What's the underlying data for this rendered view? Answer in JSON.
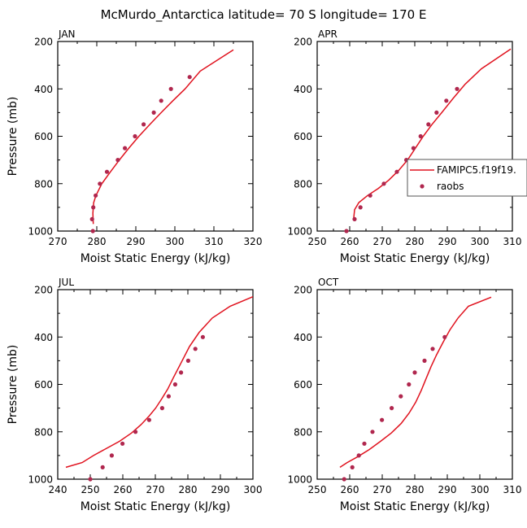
{
  "figure_title": "McMurdo_Antarctica  latitude= 70 S longitude= 170 E",
  "colors": {
    "model": "#e0121e",
    "obs": "#b0274e"
  },
  "legend": {
    "entries": [
      "FAMIPC5.f19f19.",
      "raobs"
    ],
    "panel": 1,
    "placement": "right-middle"
  },
  "chart_data": [
    {
      "type": "line",
      "panel_label": "JAN",
      "xlabel": "Moist Static Energy (kJ/kg)",
      "ylabel": "Pressure (mb)",
      "xlim": [
        270,
        320
      ],
      "ylim": [
        1000,
        200
      ],
      "y_inverted": true,
      "xticks": [
        270,
        280,
        290,
        300,
        310,
        320
      ],
      "yticks": [
        200,
        400,
        600,
        800,
        1000
      ],
      "series": [
        {
          "name": "FAMIPC5.f19f19.",
          "style": "line",
          "x": [
            279.1,
            279.0,
            279.2,
            279.8,
            281.3,
            283.5,
            285.8,
            288.2,
            290.8,
            293.6,
            296.5,
            299.5,
            302.6,
            306.5,
            315.0
          ],
          "y": [
            970,
            925,
            880,
            850,
            800,
            750,
            700,
            650,
            600,
            550,
            500,
            450,
            400,
            325,
            235
          ]
        },
        {
          "name": "raobs",
          "style": "markers",
          "x": [
            279.0,
            278.8,
            279.1,
            279.7,
            280.8,
            282.6,
            285.4,
            287.2,
            289.8,
            292.0,
            294.6,
            296.5,
            299.0,
            303.8
          ],
          "y": [
            1000,
            950,
            900,
            850,
            800,
            750,
            700,
            650,
            600,
            550,
            500,
            450,
            400,
            350
          ]
        }
      ]
    },
    {
      "type": "line",
      "panel_label": "APR",
      "xlabel": "Moist Static Energy (kJ/kg)",
      "ylabel": "",
      "xlim": [
        250,
        310
      ],
      "ylim": [
        1000,
        200
      ],
      "y_inverted": true,
      "xticks": [
        250,
        260,
        270,
        280,
        290,
        300,
        310
      ],
      "yticks": [
        200,
        400,
        600,
        800,
        1000
      ],
      "series": [
        {
          "name": "FAMIPC5.f19f19.",
          "style": "line",
          "x": [
            261.2,
            261.5,
            262.8,
            265.5,
            268.8,
            272.0,
            275.0,
            277.8,
            280.2,
            282.6,
            285.3,
            288.3,
            291.8,
            295.5,
            300.5,
            309.5
          ],
          "y": [
            950,
            910,
            880,
            850,
            820,
            785,
            745,
            700,
            650,
            600,
            550,
            500,
            440,
            380,
            315,
            232
          ]
        },
        {
          "name": "raobs",
          "style": "markers",
          "x": [
            259.0,
            261.5,
            263.3,
            266.3,
            270.5,
            274.5,
            277.4,
            279.6,
            281.8,
            284.2,
            286.7,
            289.7,
            293.0
          ],
          "y": [
            1000,
            950,
            900,
            850,
            800,
            750,
            700,
            650,
            600,
            550,
            500,
            450,
            400
          ]
        }
      ]
    },
    {
      "type": "line",
      "panel_label": "JUL",
      "xlabel": "Moist Static Energy (kJ/kg)",
      "ylabel": "Pressure (mb)",
      "xlim": [
        240,
        300
      ],
      "ylim": [
        1000,
        200
      ],
      "y_inverted": true,
      "xticks": [
        240,
        250,
        260,
        270,
        280,
        290,
        300
      ],
      "yticks": [
        200,
        400,
        600,
        800,
        1000
      ],
      "series": [
        {
          "name": "FAMIPC5.f19f19.",
          "style": "line",
          "x": [
            242.5,
            247.5,
            251.0,
            255.0,
            259.0,
            262.7,
            265.6,
            268.0,
            270.1,
            272.0,
            273.8,
            275.6,
            277.5,
            280.5,
            283.5,
            287.5,
            293.0,
            300.0
          ],
          "y": [
            950,
            930,
            900,
            870,
            840,
            805,
            770,
            735,
            700,
            660,
            620,
            570,
            520,
            440,
            380,
            320,
            270,
            230
          ]
        },
        {
          "name": "raobs",
          "style": "markers",
          "x": [
            250.0,
            253.8,
            256.6,
            259.9,
            263.9,
            268.1,
            272.1,
            274.1,
            276.1,
            277.9,
            280.1,
            282.3,
            284.6
          ],
          "y": [
            1000,
            950,
            900,
            850,
            800,
            750,
            700,
            650,
            600,
            550,
            500,
            450,
            400
          ]
        }
      ]
    },
    {
      "type": "line",
      "panel_label": "OCT",
      "xlabel": "Moist Static Energy (kJ/kg)",
      "ylabel": "",
      "xlim": [
        250,
        310
      ],
      "ylim": [
        1000,
        200
      ],
      "y_inverted": true,
      "xticks": [
        250,
        260,
        270,
        280,
        290,
        300,
        310
      ],
      "yticks": [
        200,
        400,
        600,
        800,
        1000
      ],
      "series": [
        {
          "name": "FAMIPC5.f19f19.",
          "style": "line",
          "x": [
            257.0,
            259.2,
            262.5,
            266.0,
            269.5,
            272.8,
            275.8,
            278.3,
            280.3,
            282.0,
            283.5,
            285.0,
            286.7,
            288.6,
            290.8,
            293.3,
            296.5,
            303.5
          ],
          "y": [
            950,
            930,
            905,
            875,
            840,
            805,
            765,
            720,
            675,
            625,
            575,
            525,
            475,
            425,
            370,
            320,
            270,
            232
          ]
        },
        {
          "name": "raobs",
          "style": "markers",
          "x": [
            258.3,
            260.8,
            262.8,
            264.5,
            267.0,
            269.9,
            272.9,
            275.7,
            278.2,
            280.0,
            283.0,
            285.5,
            289.2
          ],
          "y": [
            1000,
            950,
            900,
            850,
            800,
            750,
            700,
            650,
            600,
            550,
            500,
            450,
            400
          ]
        }
      ]
    }
  ]
}
